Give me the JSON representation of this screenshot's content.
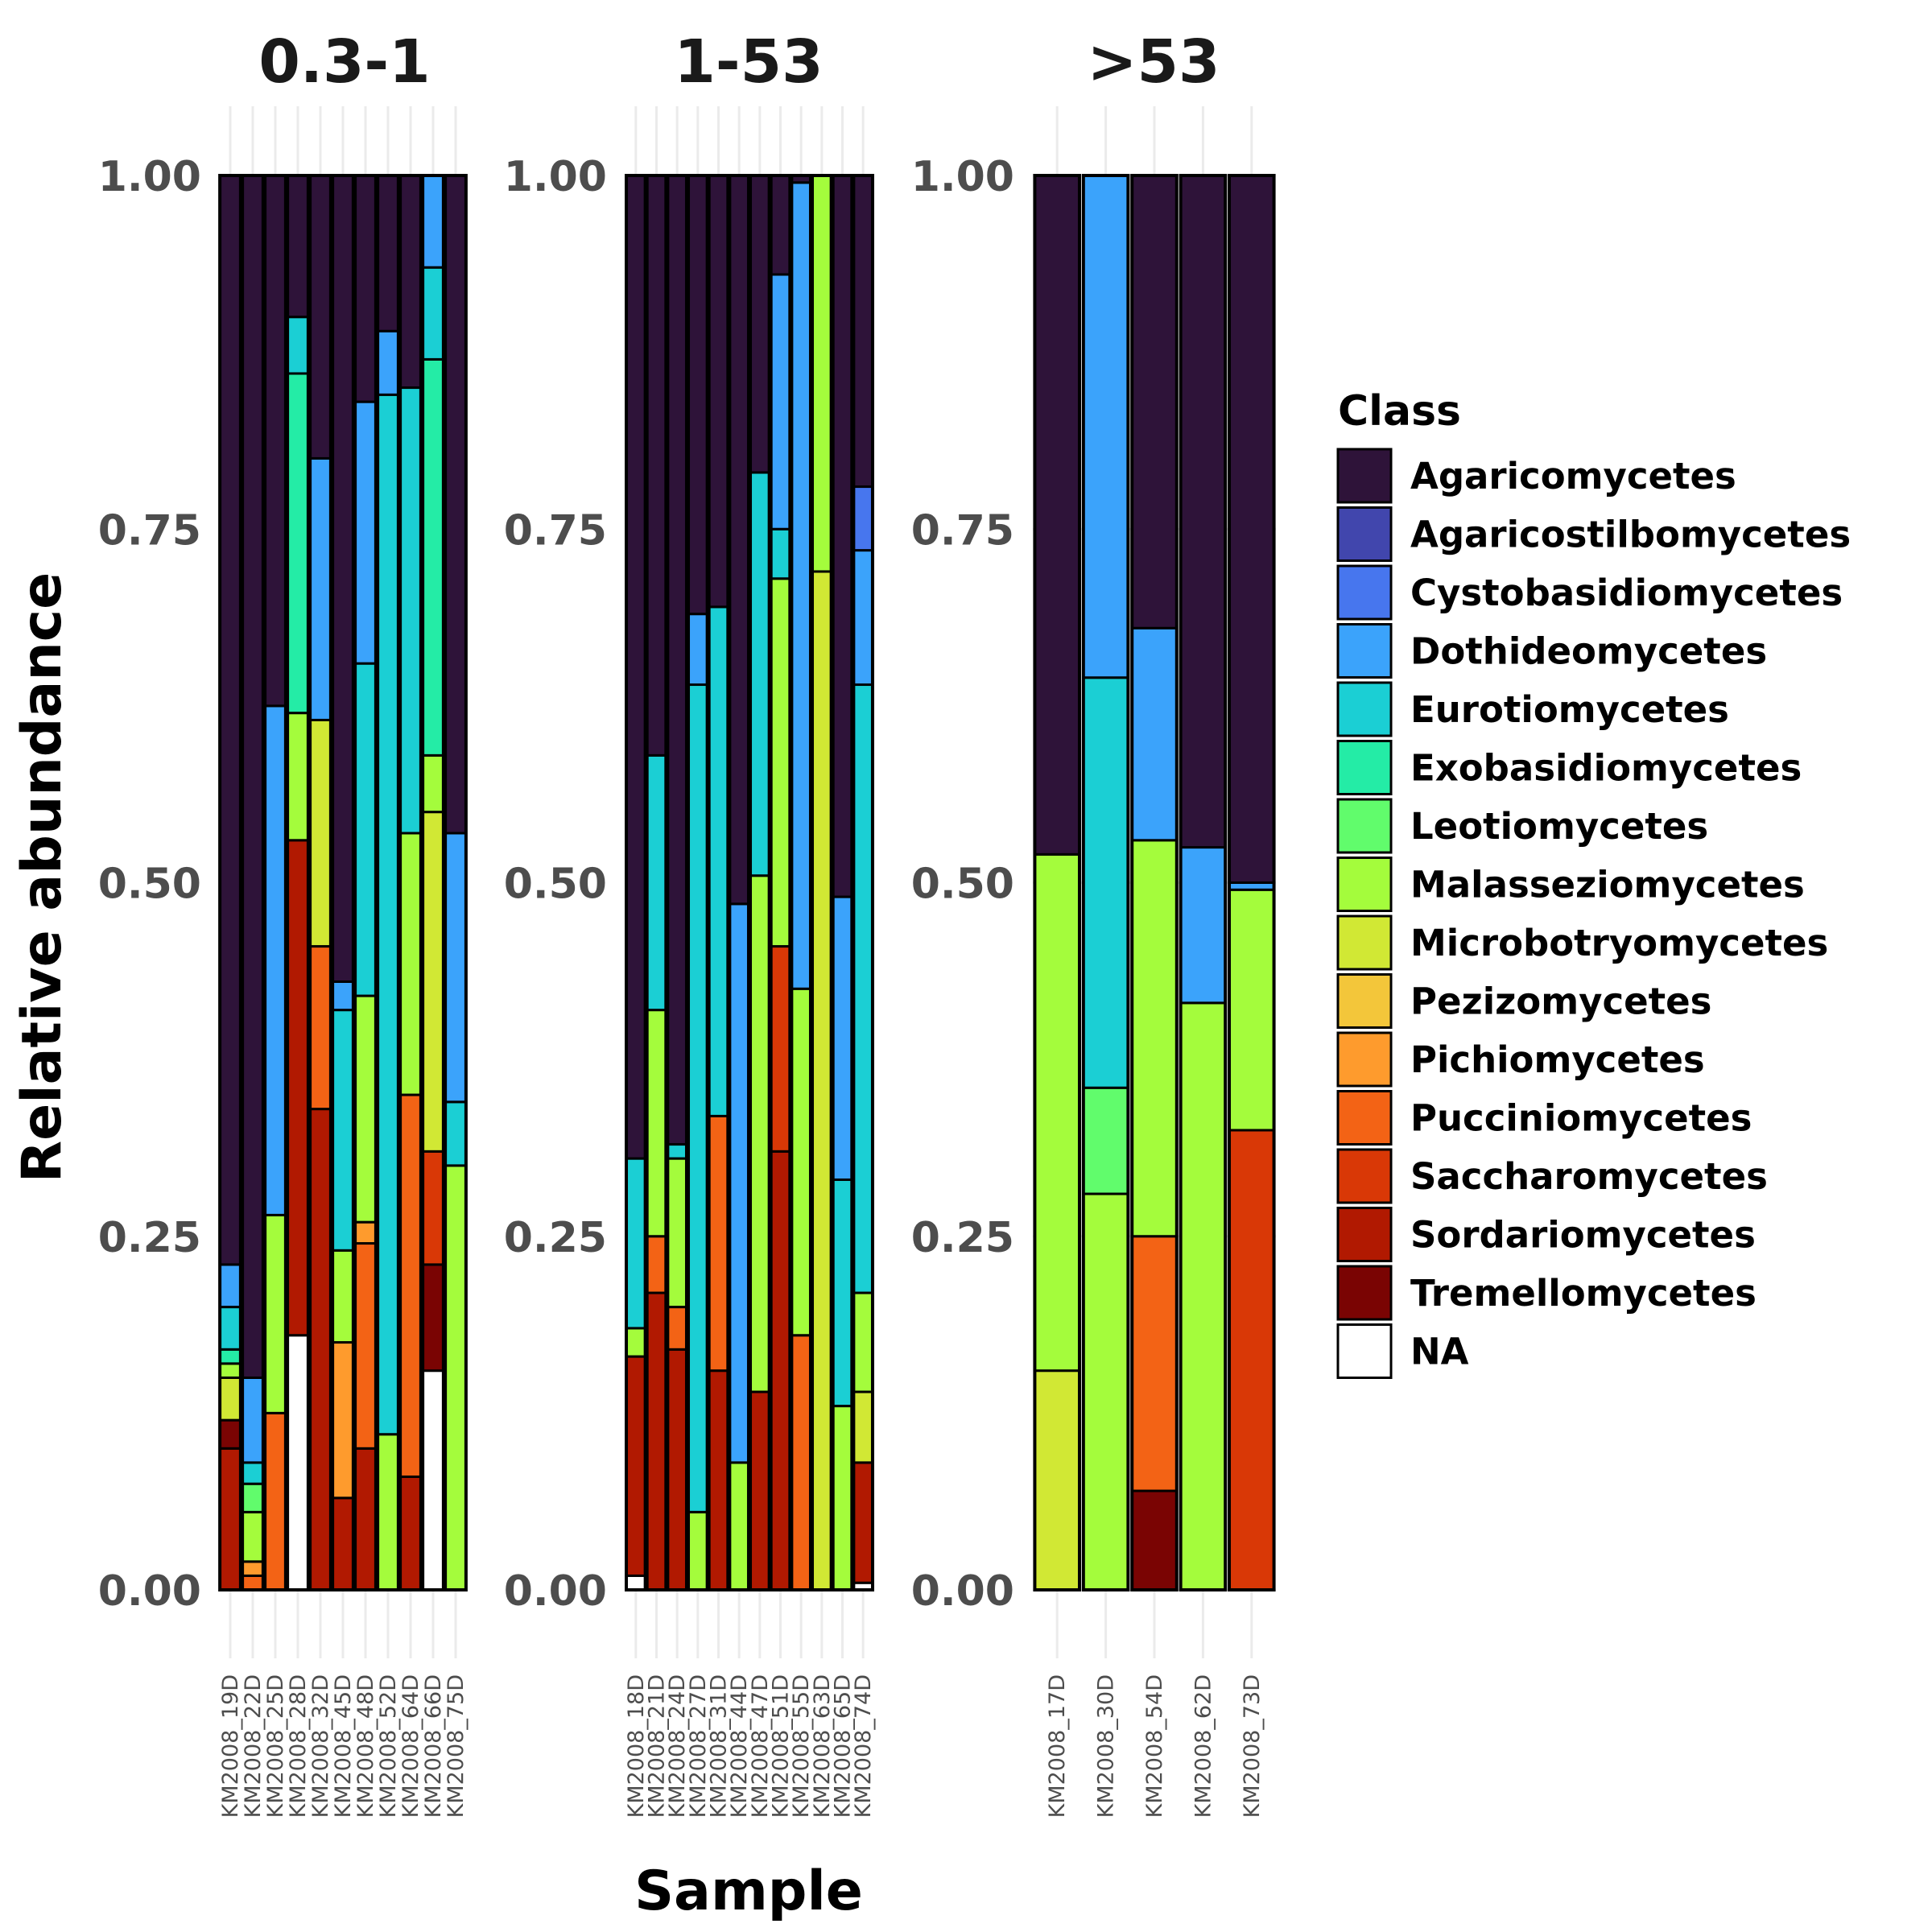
{
  "chart_data": {
    "type": "bar",
    "stacked": true,
    "ylabel": "Relative abundance",
    "xlabel": "Sample",
    "ylim": [
      0,
      1
    ],
    "yticks": [
      "0.00",
      "0.25",
      "0.50",
      "0.75",
      "1.00"
    ],
    "grid": true,
    "legend": {
      "title": "Class",
      "position": "right",
      "entries": [
        {
          "name": "Agaricomycetes",
          "color": "#2e1339"
        },
        {
          "name": "Agaricostilbomycetes",
          "color": "#4146ad"
        },
        {
          "name": "Cystobasidiomycetes",
          "color": "#4776ee"
        },
        {
          "name": "Dothideomycetes",
          "color": "#3ba3fb"
        },
        {
          "name": "Eurotiomycetes",
          "color": "#1bcfd4"
        },
        {
          "name": "Exobasidiomycetes",
          "color": "#24eca6"
        },
        {
          "name": "Leotiomycetes",
          "color": "#61fc6c"
        },
        {
          "name": "Malasseziomycetes",
          "color": "#a4fc3c"
        },
        {
          "name": "Microbotryomycetes",
          "color": "#d1e834"
        },
        {
          "name": "Pezizomycetes",
          "color": "#f3c63a"
        },
        {
          "name": "Pichiomycetes",
          "color": "#fe9b2d"
        },
        {
          "name": "Pucciniomycetes",
          "color": "#f36315"
        },
        {
          "name": "Saccharomycetes",
          "color": "#d93806"
        },
        {
          "name": "Sordariomycetes",
          "color": "#b11901"
        },
        {
          "name": "Tremellomycetes",
          "color": "#7a0403"
        },
        {
          "name": "NA",
          "color": "#ffffff"
        }
      ]
    },
    "facets": [
      {
        "title": "0.3-1",
        "samples": [
          {
            "name": "KM2008_19D",
            "segments": [
              {
                "class": "Sordariomycetes",
                "value": 0.1
              },
              {
                "class": "Tremellomycetes",
                "value": 0.02
              },
              {
                "class": "Microbotryomycetes",
                "value": 0.03
              },
              {
                "class": "Malasseziomycetes",
                "value": 0.01
              },
              {
                "class": "Exobasidiomycetes",
                "value": 0.01
              },
              {
                "class": "Eurotiomycetes",
                "value": 0.03
              },
              {
                "class": "Dothideomycetes",
                "value": 0.03
              },
              {
                "class": "Agaricomycetes",
                "value": 0.77
              }
            ]
          },
          {
            "name": "KM2008_22D",
            "segments": [
              {
                "class": "Pucciniomycetes",
                "value": 0.01
              },
              {
                "class": "Pichiomycetes",
                "value": 0.01
              },
              {
                "class": "Malasseziomycetes",
                "value": 0.035
              },
              {
                "class": "Leotiomycetes",
                "value": 0.02
              },
              {
                "class": "Eurotiomycetes",
                "value": 0.015
              },
              {
                "class": "Dothideomycetes",
                "value": 0.06
              },
              {
                "class": "Agaricomycetes",
                "value": 0.85
              }
            ]
          },
          {
            "name": "KM2008_25D",
            "segments": [
              {
                "class": "Pucciniomycetes",
                "value": 0.125
              },
              {
                "class": "Malasseziomycetes",
                "value": 0.14
              },
              {
                "class": "Dothideomycetes",
                "value": 0.36
              },
              {
                "class": "Agaricomycetes",
                "value": 0.375
              }
            ]
          },
          {
            "name": "KM2008_28D",
            "segments": [
              {
                "class": "NA",
                "value": 0.18
              },
              {
                "class": "Sordariomycetes",
                "value": 0.35
              },
              {
                "class": "Malasseziomycetes",
                "value": 0.09
              },
              {
                "class": "Exobasidiomycetes",
                "value": 0.24
              },
              {
                "class": "Eurotiomycetes",
                "value": 0.04
              },
              {
                "class": "Agaricomycetes",
                "value": 0.1
              }
            ]
          },
          {
            "name": "KM2008_32D",
            "segments": [
              {
                "class": "Sordariomycetes",
                "value": 0.34
              },
              {
                "class": "Pucciniomycetes",
                "value": 0.115
              },
              {
                "class": "Microbotryomycetes",
                "value": 0.16
              },
              {
                "class": "Dothideomycetes",
                "value": 0.185
              },
              {
                "class": "Agaricomycetes",
                "value": 0.2
              }
            ]
          },
          {
            "name": "KM2008_45D",
            "segments": [
              {
                "class": "Sordariomycetes",
                "value": 0.065
              },
              {
                "class": "Pichiomycetes",
                "value": 0.11
              },
              {
                "class": "Malasseziomycetes",
                "value": 0.065
              },
              {
                "class": "Eurotiomycetes",
                "value": 0.17
              },
              {
                "class": "Dothideomycetes",
                "value": 0.02
              },
              {
                "class": "Agaricomycetes",
                "value": 0.57
              }
            ]
          },
          {
            "name": "KM2008_48D",
            "segments": [
              {
                "class": "Sordariomycetes",
                "value": 0.1
              },
              {
                "class": "Pucciniomycetes",
                "value": 0.145
              },
              {
                "class": "Pichiomycetes",
                "value": 0.015
              },
              {
                "class": "Malasseziomycetes",
                "value": 0.16
              },
              {
                "class": "Eurotiomycetes",
                "value": 0.235
              },
              {
                "class": "Dothideomycetes",
                "value": 0.185
              },
              {
                "class": "Agaricomycetes",
                "value": 0.16
              }
            ]
          },
          {
            "name": "KM2008_52D",
            "segments": [
              {
                "class": "Malasseziomycetes",
                "value": 0.11
              },
              {
                "class": "Eurotiomycetes",
                "value": 0.735
              },
              {
                "class": "Dothideomycetes",
                "value": 0.045
              },
              {
                "class": "Agaricomycetes",
                "value": 0.11
              }
            ]
          },
          {
            "name": "KM2008_64D",
            "segments": [
              {
                "class": "Sordariomycetes",
                "value": 0.08
              },
              {
                "class": "Pucciniomycetes",
                "value": 0.27
              },
              {
                "class": "Malasseziomycetes",
                "value": 0.185
              },
              {
                "class": "Eurotiomycetes",
                "value": 0.315
              },
              {
                "class": "Agaricomycetes",
                "value": 0.15
              }
            ]
          },
          {
            "name": "KM2008_66D",
            "segments": [
              {
                "class": "NA",
                "value": 0.155
              },
              {
                "class": "Tremellomycetes",
                "value": 0.075
              },
              {
                "class": "Saccharomycetes",
                "value": 0.08
              },
              {
                "class": "Microbotryomycetes",
                "value": 0.24
              },
              {
                "class": "Malasseziomycetes",
                "value": 0.04
              },
              {
                "class": "Exobasidiomycetes",
                "value": 0.28
              },
              {
                "class": "Eurotiomycetes",
                "value": 0.065
              },
              {
                "class": "Dothideomycetes",
                "value": 0.065
              }
            ]
          },
          {
            "name": "KM2008_75D",
            "segments": [
              {
                "class": "Malasseziomycetes",
                "value": 0.3
              },
              {
                "class": "Eurotiomycetes",
                "value": 0.045
              },
              {
                "class": "Dothideomycetes",
                "value": 0.19
              },
              {
                "class": "Agaricomycetes",
                "value": 0.465
              }
            ]
          }
        ]
      },
      {
        "title": "1-53",
        "samples": [
          {
            "name": "KM2008_18D",
            "segments": [
              {
                "class": "NA",
                "value": 0.01
              },
              {
                "class": "Sordariomycetes",
                "value": 0.155
              },
              {
                "class": "Malasseziomycetes",
                "value": 0.02
              },
              {
                "class": "Eurotiomycetes",
                "value": 0.12
              },
              {
                "class": "Agaricomycetes",
                "value": 0.695
              }
            ]
          },
          {
            "name": "KM2008_21D",
            "segments": [
              {
                "class": "Sordariomycetes",
                "value": 0.21
              },
              {
                "class": "Pucciniomycetes",
                "value": 0.04
              },
              {
                "class": "Malasseziomycetes",
                "value": 0.16
              },
              {
                "class": "Eurotiomycetes",
                "value": 0.18
              },
              {
                "class": "Agaricomycetes",
                "value": 0.41
              }
            ]
          },
          {
            "name": "KM2008_24D",
            "segments": [
              {
                "class": "Sordariomycetes",
                "value": 0.17
              },
              {
                "class": "Pucciniomycetes",
                "value": 0.03
              },
              {
                "class": "Malasseziomycetes",
                "value": 0.105
              },
              {
                "class": "Eurotiomycetes",
                "value": 0.01
              },
              {
                "class": "Agaricomycetes",
                "value": 0.685
              }
            ]
          },
          {
            "name": "KM2008_27D",
            "segments": [
              {
                "class": "Malasseziomycetes",
                "value": 0.055
              },
              {
                "class": "Eurotiomycetes",
                "value": 0.585
              },
              {
                "class": "Dothideomycetes",
                "value": 0.05
              },
              {
                "class": "Agaricomycetes",
                "value": 0.31
              }
            ]
          },
          {
            "name": "KM2008_31D",
            "segments": [
              {
                "class": "Sordariomycetes",
                "value": 0.155
              },
              {
                "class": "Pucciniomycetes",
                "value": 0.18
              },
              {
                "class": "Eurotiomycetes",
                "value": 0.36
              },
              {
                "class": "Agaricomycetes",
                "value": 0.305
              }
            ]
          },
          {
            "name": "KM2008_44D",
            "segments": [
              {
                "class": "Malasseziomycetes",
                "value": 0.09
              },
              {
                "class": "Dothideomycetes",
                "value": 0.395
              },
              {
                "class": "Agaricomycetes",
                "value": 0.515
              }
            ]
          },
          {
            "name": "KM2008_47D",
            "segments": [
              {
                "class": "Sordariomycetes",
                "value": 0.14
              },
              {
                "class": "Malasseziomycetes",
                "value": 0.365
              },
              {
                "class": "Eurotiomycetes",
                "value": 0.285
              },
              {
                "class": "Agaricomycetes",
                "value": 0.21
              }
            ]
          },
          {
            "name": "KM2008_51D",
            "segments": [
              {
                "class": "Sordariomycetes",
                "value": 0.31
              },
              {
                "class": "Saccharomycetes",
                "value": 0.145
              },
              {
                "class": "Malasseziomycetes",
                "value": 0.26
              },
              {
                "class": "Eurotiomycetes",
                "value": 0.035
              },
              {
                "class": "Dothideomycetes",
                "value": 0.18
              },
              {
                "class": "Agaricomycetes",
                "value": 0.07
              }
            ]
          },
          {
            "name": "KM2008_55D",
            "segments": [
              {
                "class": "Pucciniomycetes",
                "value": 0.18
              },
              {
                "class": "Malasseziomycetes",
                "value": 0.245
              },
              {
                "class": "Dothideomycetes",
                "value": 0.57
              },
              {
                "class": "Agaricomycetes",
                "value": 0.005
              }
            ]
          },
          {
            "name": "KM2008_63D",
            "segments": [
              {
                "class": "Microbotryomycetes",
                "value": 0.72
              },
              {
                "class": "Malasseziomycetes",
                "value": 0.28
              }
            ]
          },
          {
            "name": "KM2008_65D",
            "segments": [
              {
                "class": "Malasseziomycetes",
                "value": 0.13
              },
              {
                "class": "Eurotiomycetes",
                "value": 0.16
              },
              {
                "class": "Dothideomycetes",
                "value": 0.2
              },
              {
                "class": "Agaricomycetes",
                "value": 0.51
              }
            ]
          },
          {
            "name": "KM2008_74D",
            "segments": [
              {
                "class": "NA",
                "value": 0.005
              },
              {
                "class": "Sordariomycetes",
                "value": 0.085
              },
              {
                "class": "Microbotryomycetes",
                "value": 0.05
              },
              {
                "class": "Malasseziomycetes",
                "value": 0.07
              },
              {
                "class": "Eurotiomycetes",
                "value": 0.43
              },
              {
                "class": "Dothideomycetes",
                "value": 0.095
              },
              {
                "class": "Cystobasidiomycetes",
                "value": 0.045
              },
              {
                "class": "Agaricomycetes",
                "value": 0.22
              }
            ]
          }
        ]
      },
      {
        "title": ">53",
        "samples": [
          {
            "name": "KM2008_17D",
            "segments": [
              {
                "class": "Microbotryomycetes",
                "value": 0.155
              },
              {
                "class": "Malasseziomycetes",
                "value": 0.365
              },
              {
                "class": "Agaricomycetes",
                "value": 0.48
              }
            ]
          },
          {
            "name": "KM2008_30D",
            "segments": [
              {
                "class": "Malasseziomycetes",
                "value": 0.28
              },
              {
                "class": "Leotiomycetes",
                "value": 0.075
              },
              {
                "class": "Eurotiomycetes",
                "value": 0.29
              },
              {
                "class": "Dothideomycetes",
                "value": 0.355
              }
            ]
          },
          {
            "name": "KM2008_54D",
            "segments": [
              {
                "class": "Tremellomycetes",
                "value": 0.07
              },
              {
                "class": "Pucciniomycetes",
                "value": 0.18
              },
              {
                "class": "Malasseziomycetes",
                "value": 0.28
              },
              {
                "class": "Dothideomycetes",
                "value": 0.15
              },
              {
                "class": "Agaricomycetes",
                "value": 0.32
              }
            ]
          },
          {
            "name": "KM2008_62D",
            "segments": [
              {
                "class": "Malasseziomycetes",
                "value": 0.415
              },
              {
                "class": "Dothideomycetes",
                "value": 0.11
              },
              {
                "class": "Agaricomycetes",
                "value": 0.475
              }
            ]
          },
          {
            "name": "KM2008_73D",
            "segments": [
              {
                "class": "Saccharomycetes",
                "value": 0.325
              },
              {
                "class": "Malasseziomycetes",
                "value": 0.17
              },
              {
                "class": "Dothideomycetes",
                "value": 0.005
              },
              {
                "class": "Agaricomycetes",
                "value": 0.5
              }
            ]
          }
        ]
      }
    ]
  }
}
